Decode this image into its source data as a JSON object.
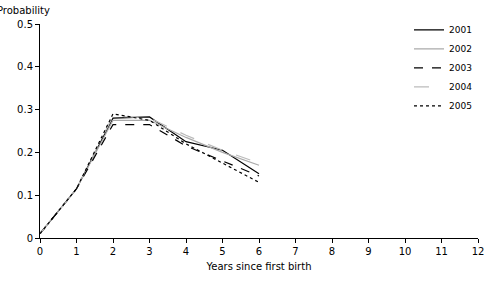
{
  "chart_data": {
    "type": "line",
    "x_label": "Years since first birth",
    "y_label": "Probability",
    "x": [
      0,
      1,
      2,
      3,
      4,
      5,
      6
    ],
    "series": [
      {
        "name": "2001",
        "color": "#000000",
        "line_style": "solid",
        "values": [
          0.01,
          0.115,
          0.28,
          0.283,
          0.225,
          0.205,
          0.15
        ]
      },
      {
        "name": "2002",
        "color": "#aaaaaa",
        "line_style": "solid",
        "values": [
          0.01,
          0.115,
          0.275,
          0.275,
          0.235,
          0.2,
          0.17
        ]
      },
      {
        "name": "2003",
        "color": "#000000",
        "line_style": "dash",
        "values": [
          0.01,
          0.115,
          0.265,
          0.265,
          0.215,
          0.18,
          0.145
        ]
      },
      {
        "name": "2004",
        "color": "#bbbbbb",
        "line_style": "longdash",
        "values": [
          0.01,
          0.115,
          0.285,
          0.28,
          0.24,
          0.205,
          0.175
        ]
      },
      {
        "name": "2005",
        "color": "#000000",
        "line_style": "dot",
        "values": [
          0.01,
          0.115,
          0.29,
          0.275,
          0.22,
          0.175,
          0.13
        ]
      }
    ],
    "xlim": [
      0,
      12
    ],
    "xticks": [
      0,
      1,
      2,
      3,
      4,
      5,
      6,
      7,
      8,
      9,
      10,
      11,
      12
    ],
    "ylim": [
      0,
      0.5
    ],
    "yticks": [
      0,
      0.1,
      0.2,
      0.3,
      0.4,
      0.5
    ],
    "grid": false,
    "legend": "top right"
  }
}
